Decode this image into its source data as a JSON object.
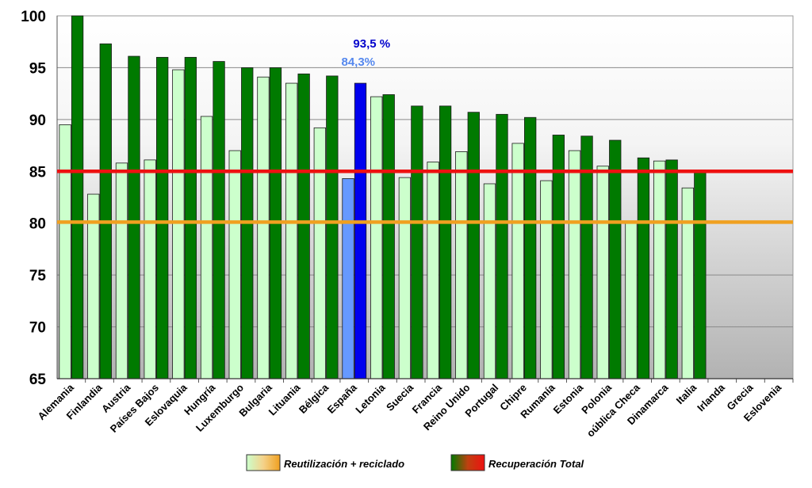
{
  "chart_data": {
    "type": "bar",
    "categories": [
      "Alemania",
      "Finlandia",
      "Austria",
      "Países Bajos",
      "Eslovaquia",
      "Hungría",
      "Luxemburgo",
      "Bulgaria",
      "Lituania",
      "Bélgica",
      "España",
      "Letonia",
      "Suecia",
      "Francia",
      "Reino Unido",
      "Portugal",
      "Chipre",
      "Rumanía",
      "Estonia",
      "Polonia",
      "oública Checa",
      "Dinamarca",
      "Italia",
      "Irlanda",
      "Grecia",
      "Eslovenia"
    ],
    "series": [
      {
        "name": "Reutilización + reciclado",
        "values": [
          89.5,
          82.8,
          85.8,
          86.1,
          94.8,
          90.3,
          87.0,
          94.1,
          93.5,
          89.2,
          84.3,
          92.2,
          84.4,
          85.9,
          86.9,
          83.8,
          87.7,
          84.1,
          87.0,
          85.5,
          80.0,
          86.0,
          83.4,
          null,
          null,
          null
        ],
        "color": "#ccffcc"
      },
      {
        "name": "Recuperación Total",
        "values": [
          100.0,
          97.3,
          96.1,
          96.0,
          96.0,
          95.6,
          95.0,
          95.0,
          94.4,
          94.2,
          93.5,
          92.4,
          91.3,
          91.3,
          90.7,
          90.5,
          90.2,
          88.5,
          88.4,
          88.0,
          86.3,
          86.1,
          84.9,
          null,
          null,
          null
        ],
        "color": "#007a00"
      }
    ],
    "highlight": {
      "category": "España",
      "colors": [
        "#6699ff",
        "#0000ee"
      ]
    },
    "reference_lines": [
      {
        "value": 85,
        "color": "#ee1111"
      },
      {
        "value": 80.1,
        "color": "#f0a020"
      }
    ],
    "annotations": [
      {
        "text": "93,5 %",
        "color": "#0000cc"
      },
      {
        "text": "84,3%",
        "color": "#5588ee"
      }
    ],
    "yticks": [
      "100",
      "95",
      "90",
      "85",
      "80",
      "75",
      "70",
      "65"
    ],
    "ylim": [
      65,
      100
    ],
    "grid": true,
    "legend_position": "bottom",
    "title": "",
    "xlabel": "",
    "ylabel": ""
  }
}
